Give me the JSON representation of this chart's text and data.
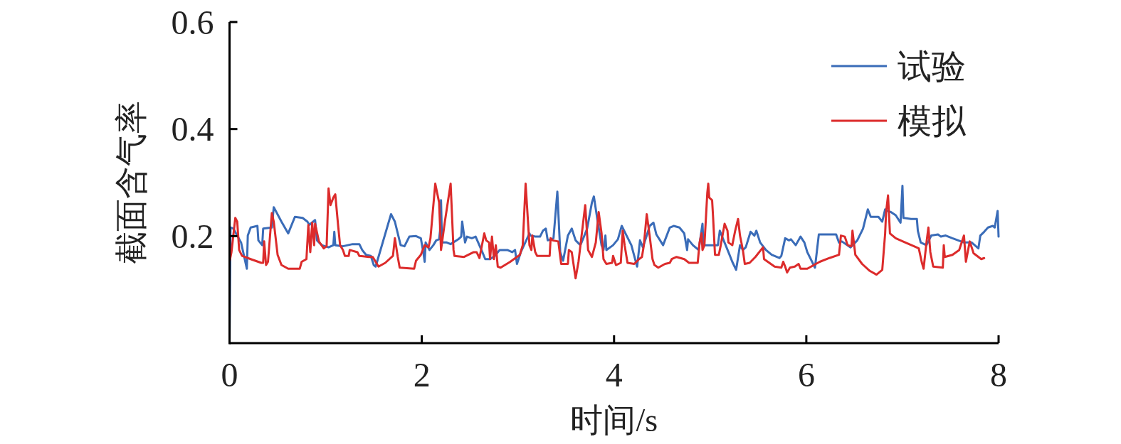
{
  "chart_data": {
    "type": "line",
    "xlabel": "时间/s",
    "ylabel": "截面含气率",
    "xlim": [
      0,
      8
    ],
    "ylim": [
      0,
      0.6
    ],
    "xticks": [
      0,
      2,
      4,
      6,
      8
    ],
    "yticks": [
      0.2,
      0.4,
      0.6
    ],
    "legend": "top right",
    "series": [
      {
        "name": "试验",
        "color": "#3a6cb8",
        "x": [
          0,
          0.01,
          0.04,
          0.12,
          0.18,
          0.19,
          0.22,
          0.29,
          0.3,
          0.34,
          0.35,
          0.44,
          0.46,
          0.54,
          0.61,
          0.68,
          0.76,
          0.81,
          0.83,
          0.89,
          0.91,
          0.96,
          1.03,
          1.08,
          1.09,
          1.1,
          1.18,
          1.28,
          1.35,
          1.38,
          1.42,
          1.47,
          1.5,
          1.52,
          1.68,
          1.72,
          1.78,
          1.82,
          1.87,
          1.94,
          1.99,
          2.02,
          2.03,
          2.04,
          2.08,
          2.12,
          2.15,
          2.18,
          2.19,
          2.2,
          2.21,
          2.26,
          2.3,
          2.38,
          2.41,
          2.42,
          2.45,
          2.47,
          2.52,
          2.56,
          2.63,
          2.66,
          2.71,
          2.76,
          2.81,
          2.89,
          2.94,
          2.97,
          2.99,
          3.03,
          3.12,
          3.13,
          3.18,
          3.23,
          3.26,
          3.29,
          3.31,
          3.37,
          3.41,
          3.44,
          3.47,
          3.52,
          3.56,
          3.6,
          3.65,
          3.68,
          3.72,
          3.77,
          3.79,
          3.83,
          3.87,
          3.89,
          3.91,
          3.92,
          3.99,
          4.04,
          4.08,
          4.13,
          4.18,
          4.24,
          4.27,
          4.3,
          4.34,
          4.37,
          4.41,
          4.44,
          4.51,
          4.58,
          4.62,
          4.68,
          4.73,
          4.76,
          4.77,
          4.82,
          4.88,
          4.92,
          4.93,
          5.08,
          5.1,
          5.14,
          5.19,
          5.23,
          5.27,
          5.31,
          5.34,
          5.37,
          5.42,
          5.46,
          5.48,
          5.52,
          5.58,
          5.64,
          5.72,
          5.74,
          5.78,
          5.82,
          5.84,
          5.89,
          5.94,
          5.98,
          6.01,
          6.09,
          6.13,
          6.31,
          6.34,
          6.37,
          6.46,
          6.53,
          6.59,
          6.64,
          6.67,
          6.75,
          6.79,
          6.82,
          6.84,
          6.88,
          6.93,
          6.98,
          7.0,
          7.01,
          7.09,
          7.15,
          7.16,
          7.19,
          7.25,
          7.3,
          7.37,
          7.4,
          7.45,
          7.52,
          7.64,
          7.72,
          7.79,
          7.81,
          7.85,
          7.89,
          7.94,
          7.96,
          7.99,
          8.0
        ],
        "values": [
          0,
          0.216,
          0.214,
          0.188,
          0.139,
          0.201,
          0.216,
          0.219,
          0.192,
          0.183,
          0.214,
          0.216,
          0.254,
          0.227,
          0.205,
          0.236,
          0.234,
          0.227,
          0.221,
          0.23,
          0.192,
          0.183,
          0.179,
          0.183,
          0.208,
          0.183,
          0.181,
          0.185,
          0.185,
          0.174,
          0.165,
          0.163,
          0.146,
          0.143,
          0.241,
          0.227,
          0.183,
          0.181,
          0.199,
          0.2,
          0.196,
          0.165,
          0.152,
          0.188,
          0.174,
          0.183,
          0.192,
          0.194,
          0.21,
          0.267,
          0.188,
          0.188,
          0.185,
          0.194,
          0.199,
          0.227,
          0.188,
          0.199,
          0.196,
          0.199,
          0.17,
          0.157,
          0.157,
          0.163,
          0.174,
          0.174,
          0.17,
          0.174,
          0.148,
          0.17,
          0.205,
          0.201,
          0.199,
          0.199,
          0.21,
          0.214,
          0.192,
          0.196,
          0.283,
          0.17,
          0.154,
          0.201,
          0.214,
          0.192,
          0.183,
          0.196,
          0.214,
          0.263,
          0.274,
          0.227,
          0.183,
          0.174,
          0.201,
          0.174,
          0.183,
          0.194,
          0.219,
          0.201,
          0.183,
          0.143,
          0.192,
          0.179,
          0.201,
          0.219,
          0.225,
          0.203,
          0.183,
          0.216,
          0.219,
          0.216,
          0.205,
          0.174,
          0.194,
          0.183,
          0.174,
          0.223,
          0.183,
          0.183,
          0.21,
          0.192,
          0.17,
          0.152,
          0.137,
          0.183,
          0.174,
          0.179,
          0.208,
          0.201,
          0.21,
          0.188,
          0.174,
          0.165,
          0.159,
          0.163,
          0.196,
          0.192,
          0.194,
          0.183,
          0.199,
          0.188,
          0.17,
          0.141,
          0.203,
          0.203,
          0.188,
          0.19,
          0.179,
          0.192,
          0.214,
          0.25,
          0.236,
          0.236,
          0.227,
          0.25,
          0.247,
          0.245,
          0.239,
          0.225,
          0.294,
          0.234,
          0.232,
          0.232,
          0.21,
          0.188,
          0.183,
          0.201,
          0.203,
          0.199,
          0.201,
          0.196,
          0.188,
          0.188,
          0.177,
          0.201,
          0.208,
          0.216,
          0.219,
          0.216,
          0.247,
          0.199
        ]
      },
      {
        "name": "模拟",
        "color": "#dc2b2b",
        "x": [
          0,
          0.02,
          0.06,
          0.08,
          0.1,
          0.13,
          0.22,
          0.33,
          0.35,
          0.36,
          0.38,
          0.4,
          0.44,
          0.46,
          0.5,
          0.54,
          0.61,
          0.73,
          0.75,
          0.8,
          0.82,
          0.84,
          0.86,
          0.88,
          0.89,
          0.93,
          0.98,
          1.01,
          1.03,
          1.05,
          1.08,
          1.1,
          1.13,
          1.15,
          1.18,
          1.2,
          1.24,
          1.25,
          1.33,
          1.35,
          1.45,
          1.49,
          1.55,
          1.62,
          1.7,
          1.72,
          1.75,
          1.77,
          1.92,
          1.94,
          1.99,
          2.03,
          2.07,
          2.09,
          2.14,
          2.18,
          2.2,
          2.24,
          2.3,
          2.33,
          2.34,
          2.44,
          2.54,
          2.57,
          2.6,
          2.65,
          2.67,
          2.7,
          2.71,
          2.73,
          2.75,
          2.77,
          2.79,
          2.82,
          2.92,
          3.02,
          3.05,
          3.08,
          3.12,
          3.14,
          3.15,
          3.18,
          3.2,
          3.33,
          3.34,
          3.36,
          3.42,
          3.45,
          3.52,
          3.53,
          3.56,
          3.6,
          3.63,
          3.7,
          3.73,
          3.77,
          3.81,
          3.84,
          3.87,
          3.89,
          3.92,
          3.98,
          3.99,
          4.02,
          4.07,
          4.09,
          4.11,
          4.14,
          4.21,
          4.26,
          4.29,
          4.31,
          4.34,
          4.37,
          4.4,
          4.42,
          4.46,
          4.53,
          4.58,
          4.6,
          4.65,
          4.73,
          4.78,
          4.87,
          4.89,
          4.91,
          4.92,
          4.94,
          4.97,
          4.98,
          4.99,
          5.02,
          5.03,
          5.05,
          5.09,
          5.11,
          5.15,
          5.18,
          5.19,
          5.23,
          5.26,
          5.29,
          5.31,
          5.34,
          5.36,
          5.41,
          5.47,
          5.55,
          5.56,
          5.67,
          5.74,
          5.76,
          5.78,
          5.8,
          5.83,
          5.88,
          5.92,
          5.94,
          6.01,
          6.14,
          6.24,
          6.34,
          6.36,
          6.4,
          6.43,
          6.47,
          6.48,
          6.51,
          6.58,
          6.66,
          6.73,
          6.79,
          6.82,
          6.83,
          6.85,
          6.87,
          6.93,
          7.03,
          7.12,
          7.17,
          7.2,
          7.22,
          7.25,
          7.27,
          7.29,
          7.32,
          7.42,
          7.43,
          7.44,
          7.52,
          7.59,
          7.64,
          7.66,
          7.7,
          7.74,
          7.82,
          7.85
        ],
        "values": [
          0.152,
          0.17,
          0.234,
          0.227,
          0.174,
          0.163,
          0.157,
          0.15,
          0.15,
          0.19,
          0.146,
          0.152,
          0.243,
          0.227,
          0.165,
          0.146,
          0.139,
          0.139,
          0.152,
          0.157,
          0.221,
          0.17,
          0.225,
          0.183,
          0.223,
          0.19,
          0.177,
          0.181,
          0.289,
          0.258,
          0.272,
          0.278,
          0.219,
          0.183,
          0.174,
          0.163,
          0.163,
          0.174,
          0.17,
          0.163,
          0.161,
          0.161,
          0.143,
          0.15,
          0.163,
          0.196,
          0.161,
          0.141,
          0.139,
          0.154,
          0.165,
          0.183,
          0.179,
          0.196,
          0.298,
          0.263,
          0.174,
          0.227,
          0.298,
          0.174,
          0.163,
          0.161,
          0.17,
          0.17,
          0.159,
          0.205,
          0.192,
          0.188,
          0.157,
          0.199,
          0.157,
          0.183,
          0.143,
          0.141,
          0.152,
          0.165,
          0.183,
          0.298,
          0.183,
          0.174,
          0.201,
          0.17,
          0.163,
          0.163,
          0.196,
          0.192,
          0.19,
          0.148,
          0.148,
          0.174,
          0.17,
          0.121,
          0.152,
          0.258,
          0.174,
          0.161,
          0.188,
          0.245,
          0.205,
          0.157,
          0.148,
          0.15,
          0.163,
          0.146,
          0.15,
          0.21,
          0.183,
          0.15,
          0.148,
          0.157,
          0.161,
          0.183,
          0.241,
          0.201,
          0.157,
          0.146,
          0.141,
          0.148,
          0.15,
          0.157,
          0.161,
          0.157,
          0.15,
          0.15,
          0.188,
          0.205,
          0.174,
          0.183,
          0.281,
          0.298,
          0.272,
          0.267,
          0.236,
          0.165,
          0.165,
          0.183,
          0.223,
          0.21,
          0.188,
          0.183,
          0.21,
          0.232,
          0.201,
          0.174,
          0.148,
          0.15,
          0.161,
          0.179,
          0.157,
          0.143,
          0.141,
          0.152,
          0.143,
          0.132,
          0.141,
          0.143,
          0.148,
          0.139,
          0.139,
          0.152,
          0.159,
          0.165,
          0.201,
          0.199,
          0.183,
          0.181,
          0.21,
          0.165,
          0.148,
          0.135,
          0.128,
          0.137,
          0.205,
          0.245,
          0.276,
          0.205,
          0.196,
          0.188,
          0.181,
          0.177,
          0.152,
          0.139,
          0.188,
          0.216,
          0.17,
          0.143,
          0.141,
          0.183,
          0.161,
          0.165,
          0.174,
          0.201,
          0.152,
          0.19,
          0.168,
          0.157,
          0.159
        ]
      }
    ]
  }
}
